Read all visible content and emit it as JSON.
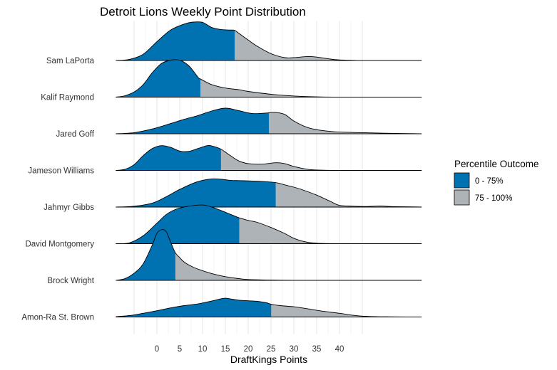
{
  "chart_data": {
    "type": "ridgeline",
    "title": "Detroit Lions Weekly Point Distribution",
    "xlabel": "DraftKings Points",
    "ylabel": "",
    "x_ticks": [
      0,
      5,
      10,
      15,
      20,
      25,
      30,
      35,
      40
    ],
    "xlim": [
      -9,
      58
    ],
    "grid": true,
    "legend": {
      "title": "Percentile Outcome",
      "position": "right",
      "entries": [
        {
          "label": "0 - 75%",
          "color": "#0072B2"
        },
        {
          "label": "75 - 100%",
          "color": "#AEB3B8"
        }
      ]
    },
    "series": [
      {
        "name": "Amon-Ra St. Brown",
        "p75": 25,
        "density_x": [
          -9,
          -6,
          -3,
          0,
          3,
          6,
          9,
          12,
          14,
          15,
          16,
          18,
          20,
          22,
          24,
          25,
          27,
          30,
          33,
          36,
          40,
          43,
          45,
          48,
          52,
          58
        ],
        "density_y": [
          0.01,
          0.05,
          0.13,
          0.22,
          0.32,
          0.4,
          0.46,
          0.56,
          0.64,
          0.66,
          0.64,
          0.59,
          0.57,
          0.55,
          0.5,
          0.45,
          0.4,
          0.36,
          0.29,
          0.21,
          0.13,
          0.06,
          0.03,
          0.01,
          0.005,
          0.0
        ]
      },
      {
        "name": "Brock Wright",
        "p75": 4,
        "density_x": [
          -9,
          -7,
          -5,
          -3,
          -1,
          0,
          1,
          2,
          3,
          4,
          5,
          6,
          8,
          10,
          12,
          15,
          18,
          20,
          25,
          30,
          35,
          40,
          45,
          50,
          58
        ],
        "density_y": [
          0.0,
          0.06,
          0.25,
          0.58,
          1.25,
          1.65,
          1.78,
          1.72,
          1.35,
          0.98,
          0.8,
          0.64,
          0.46,
          0.34,
          0.24,
          0.13,
          0.06,
          0.03,
          0.01,
          0.0,
          0.0,
          0.0,
          0.0,
          0.0,
          0.0
        ]
      },
      {
        "name": "David Montgomery",
        "p75": 18,
        "density_x": [
          -9,
          -6,
          -3,
          0,
          2,
          4,
          6,
          8,
          10,
          12,
          14,
          16,
          18,
          20,
          22,
          25,
          28,
          30,
          33,
          36,
          40,
          45,
          50,
          58
        ],
        "density_y": [
          0.0,
          0.03,
          0.28,
          0.72,
          1.02,
          1.2,
          1.29,
          1.34,
          1.36,
          1.29,
          1.17,
          1.04,
          0.91,
          0.82,
          0.75,
          0.57,
          0.36,
          0.19,
          0.05,
          0.01,
          0.0,
          0.0,
          0.0,
          0.0
        ]
      },
      {
        "name": "Jahmyr Gibbs",
        "p75": 26,
        "density_x": [
          -9,
          -5,
          -1,
          2,
          5,
          8,
          10,
          12,
          14,
          16,
          18,
          20,
          22,
          24,
          26,
          28,
          30,
          32,
          35,
          38,
          40,
          43,
          46,
          49,
          51,
          54,
          58
        ],
        "density_y": [
          0.0,
          0.03,
          0.14,
          0.36,
          0.62,
          0.84,
          0.94,
          0.99,
          0.98,
          0.94,
          0.93,
          0.92,
          0.91,
          0.89,
          0.86,
          0.78,
          0.7,
          0.6,
          0.42,
          0.2,
          0.06,
          0.03,
          0.02,
          0.04,
          0.02,
          0.01,
          0.0
        ]
      },
      {
        "name": "Jameson Williams",
        "p75": 14,
        "density_x": [
          -9,
          -7,
          -5,
          -3,
          -1,
          1,
          3,
          5,
          7,
          9,
          11,
          12,
          14,
          16,
          18,
          20,
          23,
          26,
          28,
          30,
          33,
          36,
          40,
          45,
          58
        ],
        "density_y": [
          0.0,
          0.04,
          0.2,
          0.52,
          0.77,
          0.87,
          0.81,
          0.68,
          0.67,
          0.77,
          0.87,
          0.86,
          0.75,
          0.53,
          0.33,
          0.24,
          0.22,
          0.27,
          0.24,
          0.14,
          0.04,
          0.01,
          0.0,
          0.0,
          0.0
        ]
      },
      {
        "name": "Jared Goff",
        "p75": 24.5,
        "density_x": [
          -9,
          -5,
          -1,
          3,
          6,
          9,
          12,
          15,
          18,
          21,
          24,
          24.5,
          26,
          28,
          30,
          33,
          36,
          40,
          45,
          50,
          58
        ],
        "density_y": [
          0.0,
          0.04,
          0.17,
          0.36,
          0.51,
          0.64,
          0.8,
          0.9,
          0.81,
          0.71,
          0.73,
          0.74,
          0.75,
          0.68,
          0.45,
          0.22,
          0.12,
          0.06,
          0.04,
          0.02,
          0.0
        ]
      },
      {
        "name": "Kalif Raymond",
        "p75": 9.5,
        "density_x": [
          -9,
          -7,
          -5,
          -3,
          -1,
          1,
          3,
          5,
          7,
          9,
          9.5,
          12,
          15,
          18,
          20,
          25,
          30,
          35,
          40,
          45,
          58
        ],
        "density_y": [
          0.0,
          0.05,
          0.18,
          0.44,
          0.86,
          1.18,
          1.3,
          1.3,
          1.1,
          0.7,
          0.64,
          0.44,
          0.32,
          0.26,
          0.2,
          0.1,
          0.04,
          0.01,
          0.0,
          0.0,
          0.0
        ]
      },
      {
        "name": "Sam LaPorta",
        "p75": 17,
        "density_x": [
          -9,
          -6,
          -3,
          0,
          3,
          6,
          8,
          10,
          12,
          14,
          16,
          17,
          18,
          20,
          22,
          25,
          28,
          30,
          33,
          35,
          38,
          40,
          45,
          58
        ],
        "density_y": [
          0.0,
          0.04,
          0.22,
          0.66,
          1.07,
          1.28,
          1.35,
          1.34,
          1.16,
          1.09,
          1.07,
          1.06,
          0.95,
          0.72,
          0.5,
          0.24,
          0.1,
          0.1,
          0.14,
          0.12,
          0.05,
          0.02,
          0.0,
          0.0
        ]
      }
    ]
  }
}
